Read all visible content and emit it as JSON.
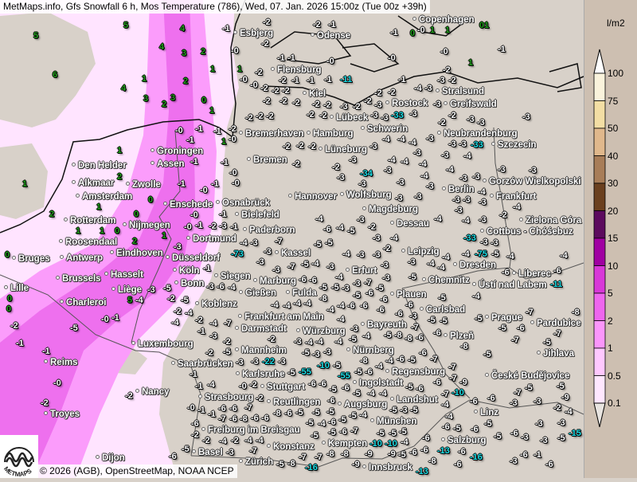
{
  "header": {
    "title": "MetMaps.info, Gfs Snowfall 6 h, Mos Temperature (786), Wed, 07. Jan. 2026 15:00z (Tue 00z +39h)"
  },
  "legend": {
    "unit": "l/m2",
    "labels": [
      "100",
      "75",
      "50",
      "40",
      "30",
      "20",
      "15",
      "10",
      "5",
      "2",
      "1",
      "0.5",
      "0.1"
    ],
    "colors": [
      "#ffffff",
      "#faf3dc",
      "#f3dea4",
      "#e0b88c",
      "#a87d58",
      "#6b401f",
      "#5c0a5e",
      "#a000a2",
      "#d838d8",
      "#ee66ee",
      "#fb96fb",
      "#ffc8ff",
      "#ffe7ff",
      "#e8e4e0"
    ]
  },
  "snow_colors": {
    "light": "#ffe4ff",
    "medium": "#fb9cfb",
    "dark": "#ee70ee",
    "land": "#d8d1c9"
  },
  "footer": {
    "copyright": "© 2026 (AGB), OpenStreetMap, NOAA NCEP"
  },
  "logo": {
    "text": "METMAPS"
  },
  "cities": [
    "Esbjerg",
    "Odense",
    "Copenhagen",
    "Flensburg",
    "Kiel",
    "Lübeck",
    "Rostock",
    "Stralsund",
    "Greifswald",
    "Bremerhaven",
    "Hamburg",
    "Lüneburg",
    "Schwerin",
    "Neubrandenburg",
    "Szczecin",
    "Bremen",
    "Groningen",
    "Assen",
    "Den Helder",
    "Alkmaar",
    "Amsterdam",
    "Zwolle",
    "Rotterdam",
    "Enschede",
    "Osnabrück",
    "Hannover",
    "Wolfsburg",
    "Magdeburg",
    "Berlin",
    "Frankfurt",
    "Gorzów Wielkopolski",
    "Zielona Góra",
    "Cottbus - Chóśebuz",
    "Nijmegen",
    "Roosendaal",
    "Eindhoven",
    "Dortmund",
    "Bielefeld",
    "Paderborn",
    "Kassel",
    "Dessau",
    "Leipzig",
    "Dresden",
    "Antwerp",
    "Bruges",
    "Düsseldorf",
    "Köln",
    "Bonn",
    "Siegen",
    "Marburg",
    "Erfurt",
    "Chemnitz",
    "Ústí nad Labem",
    "Liberec",
    "Brussels",
    "Hasselt",
    "Liège",
    "Lille",
    "Gießen",
    "Fulda",
    "Plauen",
    "Koblenz",
    "Charleroi",
    "Carlsbad",
    "Frankfurt am Main",
    "Prague",
    "Pardubice",
    "Bayreuth",
    "Darmstadt",
    "Würzburg",
    "Plzeň",
    "Luxembourg",
    "Reims",
    "Jihlava",
    "Mannheim",
    "Nürnberg",
    "Saarbrücken",
    "Karlsruhe",
    "Regensburg",
    "České Budějovice",
    "Nancy",
    "Stuttgart",
    "Ingolstadt",
    "Troyes",
    "Strasbourg",
    "Reutlingen",
    "Augsburg",
    "Landshut",
    "Linz",
    "München",
    "Freiburg im Breisgau",
    "Basel",
    "Konstanz",
    "Kempten",
    "Salzburg",
    "Zürich",
    "Innsbruck",
    "Dijon"
  ],
  "stations": [
    "5",
    "5",
    "4",
    "3",
    "2",
    "6",
    "4",
    "1",
    "2",
    "3",
    "2",
    "3",
    "0",
    "1",
    "4",
    "1",
    "1",
    "-1",
    "-2",
    "-2",
    "-1",
    "-0",
    "1",
    "1",
    "0",
    "01",
    "-1",
    "-0",
    "-2",
    "-0",
    "-0",
    "-0",
    "1",
    "-1",
    "-1",
    "-2",
    "-0",
    "-2",
    "-1",
    "-1",
    "-1",
    "-11",
    "-1",
    "-1",
    "-2",
    "-2",
    "-0",
    "-2",
    "-2",
    "-2",
    "-3",
    "-3",
    "-4",
    "-2",
    "-2",
    "-2",
    "-2",
    "-2",
    "-2",
    "-2",
    "-2",
    "-3",
    "-2",
    "-2",
    "-2",
    "-3",
    "-3",
    "-33",
    "-3",
    "-3",
    "-3",
    "-2",
    "-3",
    "-2",
    "-3",
    "-2",
    "-2",
    "-2",
    "-2",
    "-4",
    "-4",
    "-4",
    "-3",
    "-3",
    "-3",
    "-33",
    "-3",
    "-3",
    "-4",
    "-3",
    "-3",
    "-2",
    "-2",
    "-2",
    "-3",
    "-3",
    "-4",
    "-4",
    "-4",
    "-4",
    "-3",
    "-3",
    "-2",
    "-3",
    "-2",
    "-3",
    "-4",
    "-3",
    "-34",
    "-3",
    "-3",
    "-3",
    "-3",
    "-4",
    "-3",
    "-3",
    "-3",
    "-3",
    "-3",
    "-4",
    "-4",
    "-6",
    "-4",
    "-5",
    "-3",
    "-2",
    "-4",
    "-4",
    "-3",
    "-2",
    "-3",
    "-4",
    "-2",
    "-33",
    "-3",
    "-3",
    "-5",
    "-5",
    "-4",
    "-3",
    "-3",
    "-3",
    "-3",
    "-4",
    "-4",
    "-4",
    "-75",
    "-5",
    "-4",
    "-4",
    "-6",
    "-11",
    "-6",
    "-4",
    "-5",
    "-5",
    "-4",
    "-3",
    "-7",
    "-4",
    "-5",
    "-3",
    "-4",
    "-3",
    "-7",
    "-3",
    "-3",
    "-7",
    "-73",
    "-4",
    "-6",
    "-6",
    "-5",
    "-5",
    "-3",
    "-3",
    "-6",
    "-5",
    "-6",
    "-6",
    "-5",
    "-3",
    "-8",
    "-4",
    "-4",
    "-4",
    "-4",
    "-4",
    "-4",
    "-6",
    "-5",
    "-6",
    "-6",
    "-6",
    "-7",
    "-5",
    "-5",
    "-5",
    "-5",
    "-6",
    "-7",
    "-8",
    "-7",
    "-7",
    "-8",
    "-5",
    "-6",
    "-8",
    "-8",
    "-6",
    "-6",
    "-7",
    "-5",
    "-4",
    "-3",
    "-4",
    "-4",
    "-4",
    "-4",
    "-2",
    "-7",
    "-2",
    "-4",
    "-2",
    "-4",
    "-4",
    "-3",
    "-2",
    "-5",
    "-3",
    "-5",
    "-3",
    "-3",
    "-5",
    "-8",
    "-10",
    "-7",
    "-6",
    "-5",
    "-6",
    "-4",
    "-4",
    "-6",
    "-5",
    "-55",
    "-5",
    "-55",
    "-5",
    "-6",
    "-6",
    "-5",
    "-6",
    "-4",
    "-5",
    "-6",
    "-7",
    "-10",
    "-9",
    "-7",
    "-6",
    "-7",
    "-5",
    "-5",
    "-9",
    "-3",
    "-3",
    "-2",
    "-4",
    "-6",
    "-3",
    "-3",
    "-5",
    "-5",
    "-6",
    "-4",
    "-4",
    "-5",
    "-3",
    "-5",
    "-4",
    "-5",
    "-4",
    "-5",
    "-6",
    "-5",
    "-5",
    "-5",
    "-6",
    "-6",
    "-5",
    "-4",
    "-5",
    "-4",
    "-7",
    "-6",
    "-5",
    "-10",
    "-5",
    "-6",
    "-13",
    "-5",
    "-6",
    "-5",
    "-6",
    "-3",
    "-3",
    "-15",
    "-6",
    "-16",
    "-6",
    "-8",
    "-6",
    "-5",
    "-9",
    "-13",
    "-6",
    "-3",
    "-6",
    "-1",
    "-6",
    "-9",
    "-8",
    "-7",
    "-8",
    "-9",
    "-10",
    "-16",
    "-5",
    "-8",
    "-7",
    "-4",
    "-4",
    "-7",
    "-8",
    "-6",
    "-6",
    "-7",
    "-6",
    "-6",
    "-1",
    "-1",
    "-6",
    "-2",
    "-2",
    "-5",
    "-4",
    "-3",
    "-6",
    "-2",
    "-1",
    "-4",
    "-1",
    "-2",
    "-3",
    "-3",
    "-22",
    "-3",
    "-2",
    "-2",
    "-8",
    "-7",
    "-5",
    "-5",
    "-5",
    "-6",
    "-0",
    "-1",
    "-5",
    "-0",
    "-2",
    "-1",
    "-1",
    "-0",
    "-2",
    "-2",
    "-0",
    "-0",
    "-1",
    "-1",
    "-0",
    "-1",
    "-1",
    "-1",
    "-0",
    "-1",
    "-1",
    "-0",
    "-0",
    "-0",
    "-1",
    "-1",
    "-2",
    "-0",
    "-3",
    "-1",
    "-3",
    "-1",
    "-3",
    "-3",
    "-6",
    "-4",
    "-2",
    "-5",
    "-5",
    "-1",
    "-4",
    "-3",
    "5",
    "1",
    "1",
    "2",
    "1",
    "2",
    "0",
    "0",
    "2",
    "1",
    "0",
    "0",
    "1",
    "0",
    "0",
    "1",
    "1"
  ]
}
